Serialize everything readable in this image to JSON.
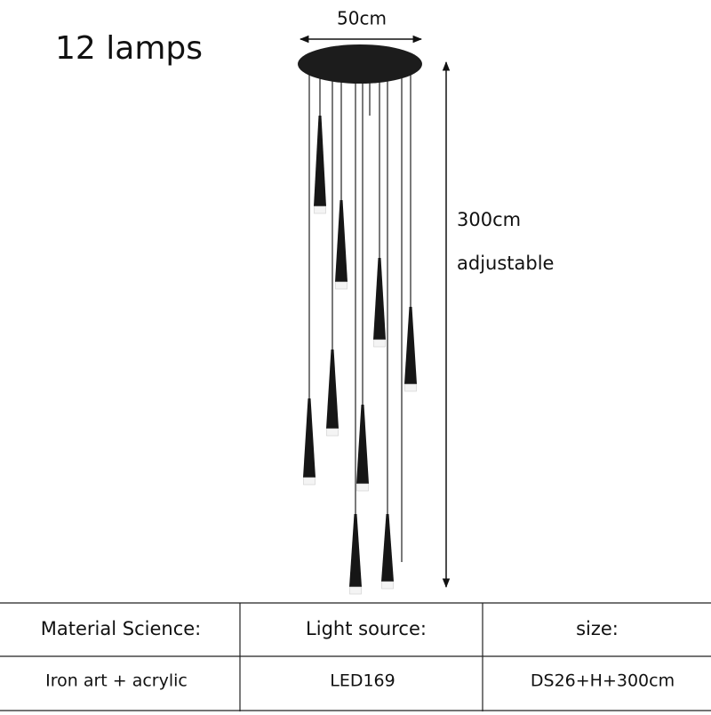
{
  "title": "12 lamps",
  "dimensions": {
    "width": "50cm",
    "height": "300cm",
    "height_note": "adjustable"
  },
  "table": {
    "headers": [
      "Material Science:",
      "Light source:",
      "size:"
    ],
    "rows": [
      [
        "Iron art + acrylic",
        "LED169",
        "DS26+H+300cm"
      ]
    ]
  }
}
